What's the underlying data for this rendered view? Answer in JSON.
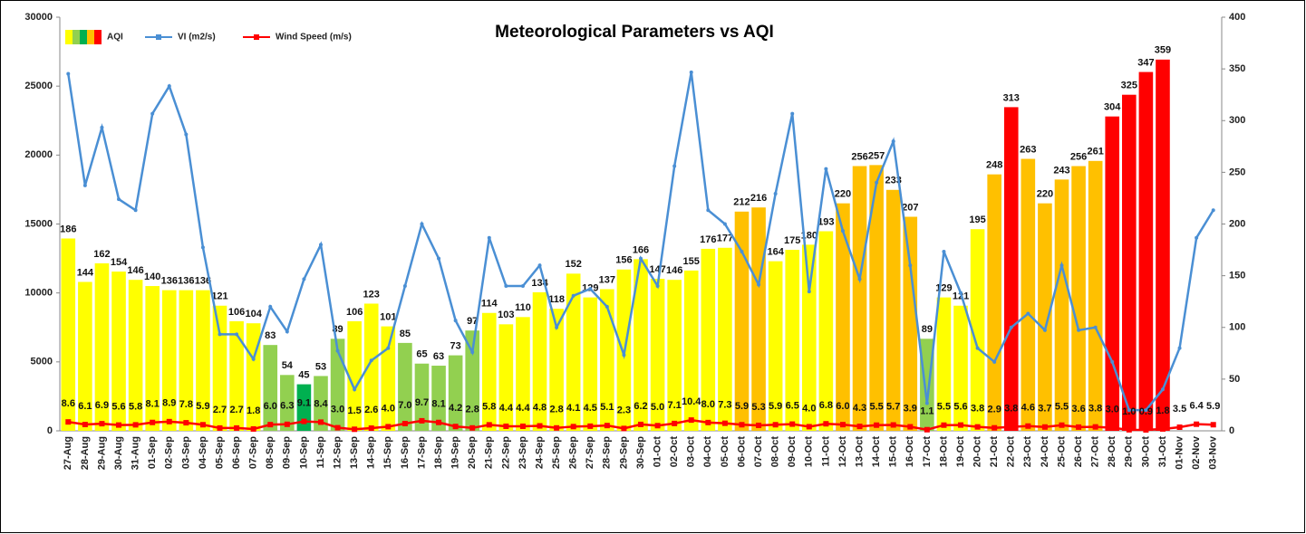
{
  "chart_data": {
    "type": "bar",
    "title": "Meteorological Parameters vs AQI",
    "categories": [
      "27-Aug",
      "28-Aug",
      "29-Aug",
      "30-Aug",
      "31-Aug",
      "01-Sep",
      "02-Sep",
      "03-Sep",
      "04-Sep",
      "05-Sep",
      "06-Sep",
      "07-Sep",
      "08-Sep",
      "09-Sep",
      "10-Sep",
      "11-Sep",
      "12-Sep",
      "13-Sep",
      "14-Sep",
      "15-Sep",
      "16-Sep",
      "17-Sep",
      "18-Sep",
      "19-Sep",
      "20-Sep",
      "21-Sep",
      "22-Sep",
      "23-Sep",
      "24-Sep",
      "25-Sep",
      "26-Sep",
      "27-Sep",
      "28-Sep",
      "29-Sep",
      "30-Sep",
      "01-Oct",
      "02-Oct",
      "03-Oct",
      "04-Oct",
      "05-Oct",
      "06-Oct",
      "07-Oct",
      "08-Oct",
      "09-Oct",
      "10-Oct",
      "11-Oct",
      "12-Oct",
      "13-Oct",
      "14-Oct",
      "15-Oct",
      "16-Oct",
      "17-Oct",
      "18-Oct",
      "19-Oct",
      "20-Oct",
      "21-Oct",
      "22-Oct",
      "23-Oct",
      "24-Oct",
      "25-Oct",
      "26-Oct",
      "27-Oct",
      "28-Oct",
      "29-Oct",
      "30-Oct",
      "31-Oct",
      "01-Nov",
      "02-Nov",
      "03-Nov"
    ],
    "series": [
      {
        "name": "AQI",
        "type": "bar",
        "axis": "y2",
        "values": [
          186,
          144,
          162,
          154,
          146,
          140,
          136,
          136,
          136,
          121,
          106,
          104,
          83,
          54,
          45,
          53,
          89,
          106,
          123,
          101,
          85,
          65,
          63,
          73,
          97,
          114,
          103,
          110,
          134,
          118,
          152,
          129,
          137,
          156,
          166,
          147,
          146,
          155,
          176,
          177,
          212,
          216,
          164,
          175,
          180,
          193,
          220,
          256,
          257,
          233,
          207,
          89,
          129,
          121,
          195,
          248,
          313,
          263,
          220,
          243,
          256,
          261,
          304,
          325,
          347,
          359,
          null,
          null,
          null
        ],
        "colors": [
          "#ffff00",
          "#ffff00",
          "#ffff00",
          "#ffff00",
          "#ffff00",
          "#ffff00",
          "#ffff00",
          "#ffff00",
          "#ffff00",
          "#ffff00",
          "#ffff00",
          "#ffff00",
          "#92d050",
          "#92d050",
          "#00b050",
          "#92d050",
          "#92d050",
          "#ffff00",
          "#ffff00",
          "#ffff00",
          "#92d050",
          "#92d050",
          "#92d050",
          "#92d050",
          "#92d050",
          "#ffff00",
          "#ffff00",
          "#ffff00",
          "#ffff00",
          "#ffff00",
          "#ffff00",
          "#ffff00",
          "#ffff00",
          "#ffff00",
          "#ffff00",
          "#ffff00",
          "#ffff00",
          "#ffff00",
          "#ffff00",
          "#ffff00",
          "#ffc000",
          "#ffc000",
          "#ffff00",
          "#ffff00",
          "#ffff00",
          "#ffff00",
          "#ffc000",
          "#ffc000",
          "#ffc000",
          "#ffc000",
          "#ffc000",
          "#92d050",
          "#ffff00",
          "#ffff00",
          "#ffff00",
          "#ffc000",
          "#ff0000",
          "#ffc000",
          "#ffc000",
          "#ffc000",
          "#ffc000",
          "#ffc000",
          "#ff0000",
          "#ff0000",
          "#ff0000",
          "#ff0000",
          "#ffc000",
          "#ffc000",
          "#ffc000"
        ]
      },
      {
        "name": "VI (m2/s)",
        "type": "line",
        "color": "#4a8fd4",
        "values": [
          25900,
          17800,
          22000,
          16800,
          16000,
          23000,
          25000,
          21500,
          13300,
          7000,
          7000,
          5200,
          9000,
          7200,
          11000,
          13500,
          5800,
          3000,
          5100,
          6000,
          10500,
          15000,
          12500,
          8000,
          5700,
          14000,
          10500,
          10500,
          12000,
          7500,
          9800,
          10300,
          9000,
          5500,
          12500,
          10500,
          19200,
          26000,
          16000,
          15000,
          13000,
          10600,
          17200,
          23000,
          10100,
          19000,
          14500,
          11000,
          18000,
          21000,
          12000,
          2000,
          13000,
          10000,
          6000,
          5000,
          7500,
          8500,
          7300,
          12000,
          7300,
          7500,
          5000,
          1500,
          1500,
          3000,
          6000,
          14000,
          16000
        ]
      },
      {
        "name": "Wind Speed (m/s)",
        "type": "line",
        "axis": "y2",
        "color": "#ff0000",
        "values": [
          8.6,
          6.1,
          6.9,
          5.6,
          5.8,
          8.1,
          8.9,
          7.8,
          5.9,
          2.7,
          2.7,
          1.8,
          6,
          6.3,
          9.1,
          8.4,
          3,
          1.5,
          2.6,
          4,
          7,
          9.7,
          8.1,
          4.2,
          2.8,
          5.8,
          4.4,
          4.4,
          4.8,
          2.8,
          4.1,
          4.5,
          5.1,
          2.3,
          6.2,
          5,
          7.1,
          10.4,
          8,
          7.3,
          5.9,
          5.3,
          5.9,
          6.5,
          4,
          6.8,
          6,
          4.3,
          5.5,
          5.7,
          3.9,
          1.1,
          5.5,
          5.6,
          3.8,
          2.9,
          3.8,
          4.6,
          3.7,
          5.5,
          3.6,
          3.8,
          3,
          1,
          0.9,
          1.8,
          3.5,
          6.4,
          5.9
        ],
        "value_labels": [
          "8.6",
          "6.1",
          "6.9",
          "5.6",
          "5.8",
          "8.1",
          "8.9",
          "7.8",
          "5.9",
          "2.7",
          "2.7",
          "1.8",
          "6.0",
          "6.3",
          "9.1",
          "8.4",
          "3.0",
          "1.5",
          "2.6",
          "4.0",
          "7.0",
          "9.7",
          "8.1",
          "4.2",
          "2.8",
          "5.8",
          "4.4",
          "4.4",
          "4.8",
          "2.8",
          "4.1",
          "4.5",
          "5.1",
          "2.3",
          "6.2",
          "5.0",
          "7.1",
          "10.4",
          "8.0",
          "7.3",
          "5.9",
          "5.3",
          "5.9",
          "6.5",
          "4.0",
          "6.8",
          "6.0",
          "4.3",
          "5.5",
          "5.7",
          "3.9",
          "1.1",
          "5.5",
          "5.6",
          "3.8",
          "2.9",
          "3.8",
          "4.6",
          "3.7",
          "5.5",
          "3.6",
          "3.8",
          "3.0",
          "1.0",
          "0.9",
          "1.8",
          "3.5",
          "6.4",
          "5.9"
        ]
      }
    ],
    "ylim": [
      0,
      30000
    ],
    "yticks": [
      0,
      5000,
      10000,
      15000,
      20000,
      25000,
      30000
    ],
    "y2lim": [
      0,
      400
    ],
    "y2ticks": [
      0,
      50,
      100,
      150,
      200,
      250,
      300,
      350,
      400
    ]
  }
}
